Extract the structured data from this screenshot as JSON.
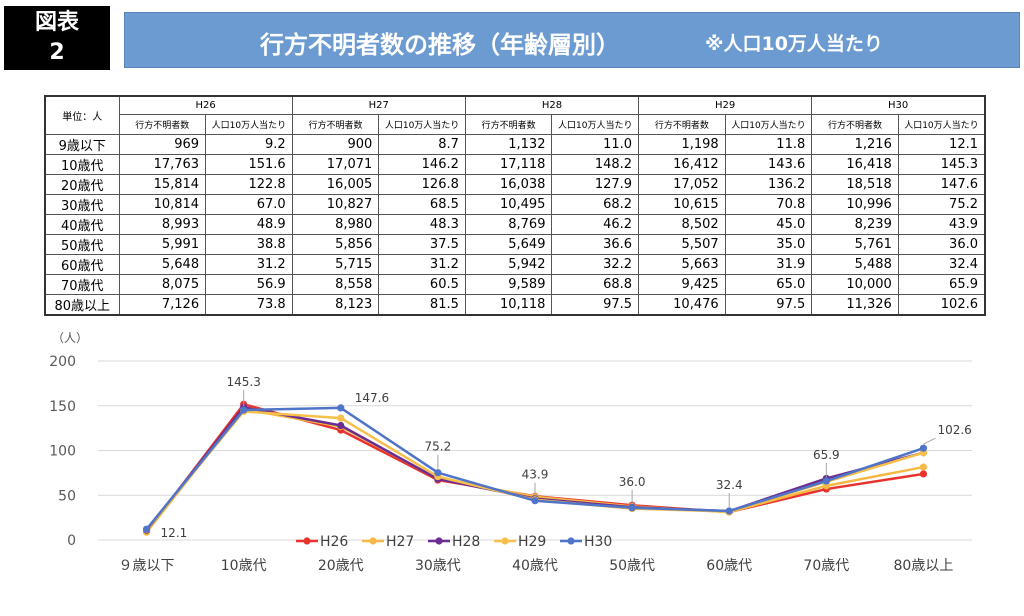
{
  "header": {
    "badge_line1": "図表",
    "badge_line2": "2",
    "title": "行方不明者数の推移（年齢層別）",
    "note": "※人口10万人当たり"
  },
  "table": {
    "unit_label": "単位：人",
    "years": [
      "H26",
      "H27",
      "H28",
      "H29",
      "H30"
    ],
    "sub_headers": [
      "行方不明者数",
      "人口10万人当たり"
    ],
    "rows": [
      {
        "label": "9歳以下",
        "cells": [
          "969",
          "9.2",
          "900",
          "8.7",
          "1,132",
          "11.0",
          "1,198",
          "11.8",
          "1,216",
          "12.1"
        ]
      },
      {
        "label": "10歳代",
        "cells": [
          "17,763",
          "151.6",
          "17,071",
          "146.2",
          "17,118",
          "148.2",
          "16,412",
          "143.6",
          "16,418",
          "145.3"
        ]
      },
      {
        "label": "20歳代",
        "cells": [
          "15,814",
          "122.8",
          "16,005",
          "126.8",
          "16,038",
          "127.9",
          "17,052",
          "136.2",
          "18,518",
          "147.6"
        ]
      },
      {
        "label": "30歳代",
        "cells": [
          "10,814",
          "67.0",
          "10,827",
          "68.5",
          "10,495",
          "68.2",
          "10,615",
          "70.8",
          "10,996",
          "75.2"
        ]
      },
      {
        "label": "40歳代",
        "cells": [
          "8,993",
          "48.9",
          "8,980",
          "48.3",
          "8,769",
          "46.2",
          "8,502",
          "45.0",
          "8,239",
          "43.9"
        ]
      },
      {
        "label": "50歳代",
        "cells": [
          "5,991",
          "38.8",
          "5,856",
          "37.5",
          "5,649",
          "36.6",
          "5,507",
          "35.0",
          "5,761",
          "36.0"
        ]
      },
      {
        "label": "60歳代",
        "cells": [
          "5,648",
          "31.2",
          "5,715",
          "31.2",
          "5,942",
          "32.2",
          "5,663",
          "31.9",
          "5,488",
          "32.4"
        ]
      },
      {
        "label": "70歳代",
        "cells": [
          "8,075",
          "56.9",
          "8,558",
          "60.5",
          "9,589",
          "68.8",
          "9,425",
          "65.0",
          "10,000",
          "65.9"
        ]
      },
      {
        "label": "80歳以上",
        "cells": [
          "7,126",
          "73.8",
          "8,123",
          "81.5",
          "10,118",
          "97.5",
          "10,476",
          "97.5",
          "11,326",
          "102.6"
        ]
      }
    ]
  },
  "chart_data": {
    "type": "line",
    "unit_label": "（人）",
    "categories": [
      "９歳以下",
      "10歳代",
      "20歳代",
      "30歳代",
      "40歳代",
      "50歳代",
      "60歳代",
      "70歳代",
      "80歳以上"
    ],
    "ylim": [
      0,
      200
    ],
    "yticks": [
      0,
      50,
      100,
      150,
      200
    ],
    "grid": true,
    "legend_position": "bottom",
    "series": [
      {
        "name": "H26",
        "color": "#e8322d",
        "values": [
          9.2,
          151.6,
          122.8,
          67.0,
          48.9,
          38.8,
          31.2,
          56.9,
          73.8
        ]
      },
      {
        "name": "H27",
        "color": "#f5b944",
        "values": [
          8.7,
          146.2,
          126.8,
          68.5,
          48.3,
          37.5,
          31.2,
          60.5,
          81.5
        ]
      },
      {
        "name": "H28",
        "color": "#6b2d91",
        "values": [
          11.0,
          148.2,
          127.9,
          68.2,
          46.2,
          36.6,
          32.2,
          68.8,
          97.5
        ]
      },
      {
        "name": "H29",
        "color": "#f7c04a",
        "values": [
          11.8,
          143.6,
          136.2,
          70.8,
          45.0,
          35.0,
          31.9,
          65.0,
          97.5
        ]
      },
      {
        "name": "H30",
        "color": "#4f74c8",
        "values": [
          12.1,
          145.3,
          147.6,
          75.2,
          43.9,
          36.0,
          32.4,
          65.9,
          102.6
        ]
      }
    ],
    "data_labels": [
      "12.1",
      "145.3",
      "147.6",
      "75.2",
      "43.9",
      "36.0",
      "32.4",
      "65.9",
      "102.6"
    ]
  }
}
